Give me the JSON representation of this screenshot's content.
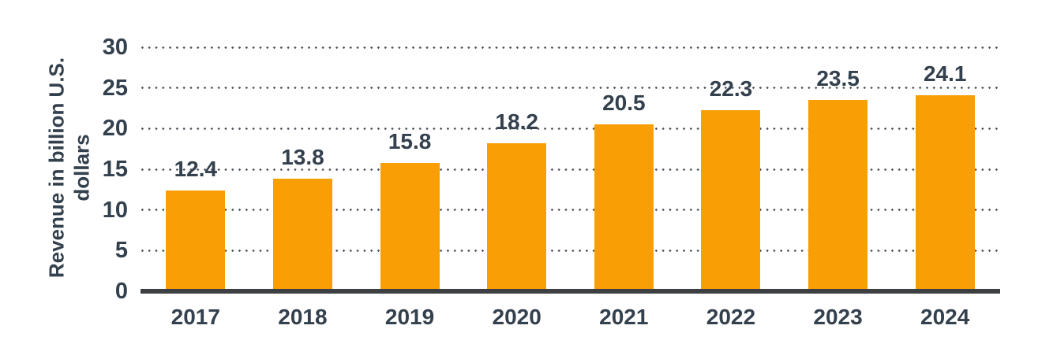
{
  "chart_data": {
    "type": "bar",
    "title": "",
    "xlabel": "",
    "ylabel": "Revenue in billion U.S. dollars",
    "ylabel_lines": [
      "Revenue in billion U.S.",
      "dollars"
    ],
    "categories": [
      "2017",
      "2018",
      "2019",
      "2020",
      "2021",
      "2022",
      "2023",
      "2024"
    ],
    "values": [
      12.4,
      13.8,
      15.8,
      18.2,
      20.5,
      22.3,
      23.5,
      24.1
    ],
    "value_labels": [
      "12.4",
      "13.8",
      "15.8",
      "18.2",
      "20.5",
      "22.3",
      "23.5",
      "24.1"
    ],
    "y_ticks": [
      0,
      5,
      10,
      15,
      20,
      25,
      30
    ],
    "ylim": [
      0,
      30
    ],
    "grid": "horizontal-dotted",
    "legend": "none",
    "colors": {
      "bar": "#FA9E05",
      "text": "#33404D",
      "axis_line": "#3C4043",
      "grid_dots": "#4E565F",
      "background": "#FFFFFF"
    }
  }
}
